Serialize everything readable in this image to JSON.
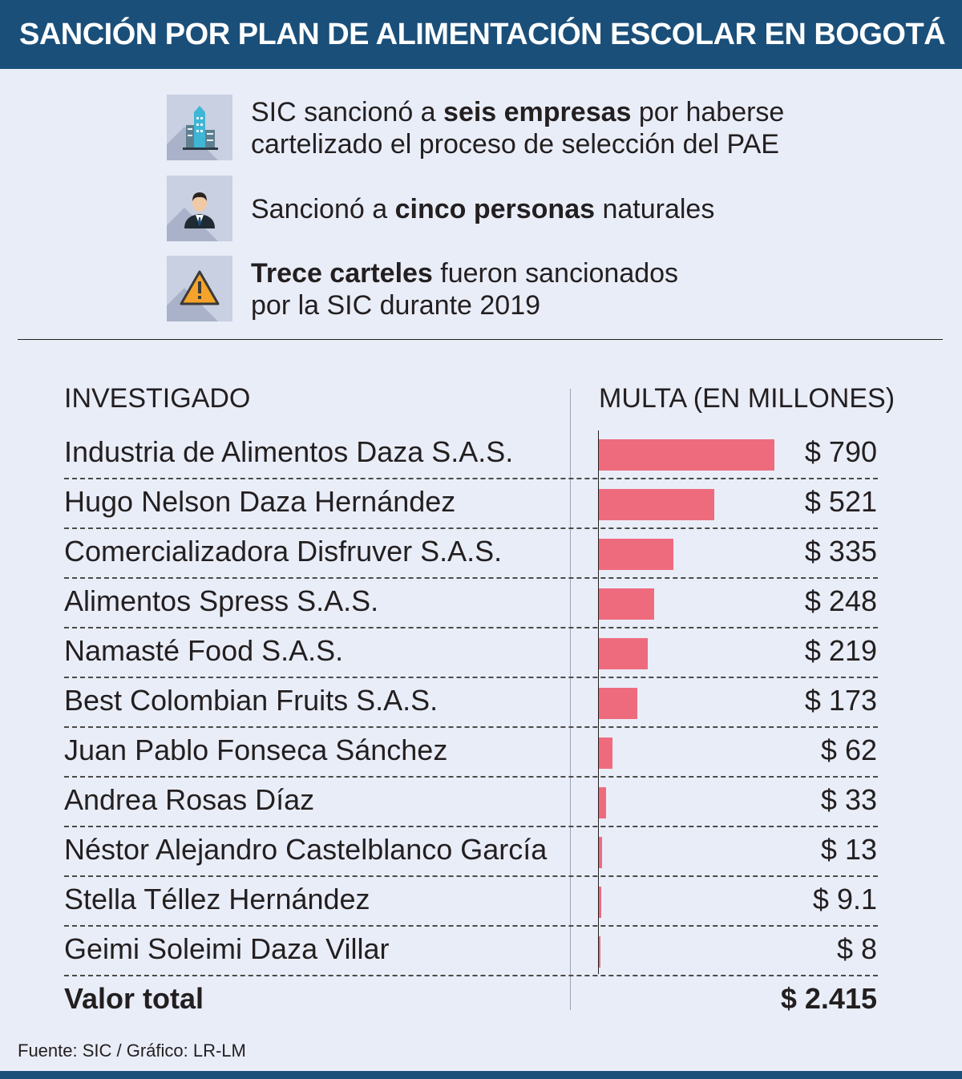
{
  "title": "SANCIÓN POR PLAN DE ALIMENTACIÓN ESCOLAR EN BOGOTÁ",
  "facts": [
    {
      "icon": "building-icon",
      "pre": "SIC sancionó a ",
      "bold": "seis empresas",
      "post": " por haberse",
      "line2": "cartelizado el proceso de selección del PAE"
    },
    {
      "icon": "person-icon",
      "pre": "Sancionó a ",
      "bold": "cinco personas",
      "post": " naturales",
      "line2": ""
    },
    {
      "icon": "warning-icon",
      "pre": "",
      "bold": "Trece carteles",
      "post": " fueron sancionados",
      "line2": "por la SIC durante 2019"
    }
  ],
  "chart_data": {
    "type": "bar",
    "orientation": "horizontal",
    "xlabel": "INVESTIGADO",
    "ylabel": "MULTA (EN MILLONES)",
    "categories": [
      "Industria de Alimentos Daza S.A.S.",
      "Hugo Nelson Daza Hernández",
      "Comercializadora Disfruver S.A.S.",
      "Alimentos Spress S.A.S.",
      "Namasté Food S.A.S.",
      "Best Colombian Fruits S.A.S.",
      "Juan Pablo Fonseca Sánchez",
      "Andrea Rosas Díaz",
      "Néstor Alejandro Castelblanco García",
      "Stella Téllez Hernández",
      "Geimi Soleimi Daza Villar"
    ],
    "values": [
      790,
      521,
      335,
      248,
      219,
      173,
      62,
      33,
      13,
      9.1,
      8
    ],
    "value_labels": [
      "$ 790",
      "$ 521",
      "$ 335",
      "$ 248",
      "$ 219",
      "$ 173",
      "$ 62",
      "$ 33",
      "$ 13",
      "$ 9.1",
      "$ 8"
    ],
    "bar_color": "#ee6b7e",
    "total_label": "Valor total",
    "total_value": "$ 2.415"
  },
  "source": "Fuente: SIC / Gráfico: LR-LM",
  "colors": {
    "header": "#1a4f7a",
    "background": "#e9edf8",
    "bar": "#ee6b7e"
  }
}
